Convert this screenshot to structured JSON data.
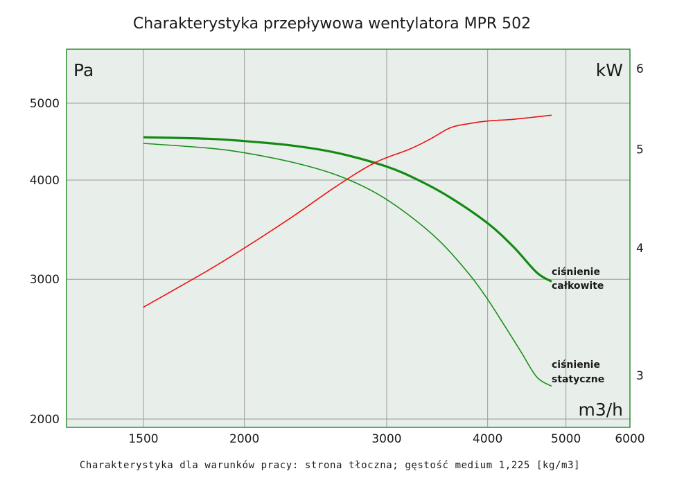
{
  "chart_data": {
    "type": "line",
    "title": "Charakterystyka przepływowa wentylatora MPR 502",
    "footer": "Charakterystyka dla warunków pracy: strona tłoczna; gęstość medium 1,225 [kg/m3]",
    "x_unit": "m3/h",
    "y_left_unit": "Pa",
    "y_right_unit": "kW",
    "x_scale": "log",
    "y_left_scale": "log",
    "y_right_scale": "log",
    "xlim": [
      1200,
      6000
    ],
    "ylim_left": [
      1950,
      6000
    ],
    "ylim_right": [
      2.6,
      6.2
    ],
    "x_ticks": [
      "1500",
      "2000",
      "3000",
      "4000",
      "5000",
      "6000"
    ],
    "y_left_ticks": [
      "2000",
      "3000",
      "4000",
      "5000"
    ],
    "y_right_ticks": [
      "3",
      "4",
      "5",
      "6"
    ],
    "grid": true,
    "colors": {
      "plot_bg": "#e8efea",
      "frame": "#2e8b2e",
      "grid": "#9a9a9a",
      "total_pressure": "#138a13",
      "static_pressure": "#1a8f1a",
      "power": "#ee1111"
    },
    "series": [
      {
        "name": "ciśnienie całkowite",
        "axis": "left",
        "label_lines": [
          "ciśnienie",
          "całkowite"
        ],
        "x": [
          1500,
          1800,
          2000,
          2300,
          2600,
          3000,
          3300,
          3600,
          4000,
          4300,
          4600,
          4800
        ],
        "y": [
          4530,
          4510,
          4480,
          4420,
          4330,
          4160,
          3990,
          3800,
          3530,
          3300,
          3060,
          2980
        ]
      },
      {
        "name": "ciśnienie statyczne",
        "axis": "left",
        "label_lines": [
          "ciśnienie",
          "statyczne"
        ],
        "x": [
          1500,
          1800,
          2000,
          2300,
          2600,
          2900,
          3200,
          3500,
          3800,
          4000,
          4200,
          4400,
          4600,
          4800
        ],
        "y": [
          4450,
          4390,
          4330,
          4210,
          4060,
          3860,
          3610,
          3340,
          3040,
          2830,
          2620,
          2430,
          2260,
          2200
        ]
      },
      {
        "name": "",
        "axis": "right",
        "x": [
          1500,
          1800,
          2000,
          2300,
          2600,
          2900,
          3200,
          3400,
          3600,
          3800,
          4000,
          4300,
          4600,
          4800
        ],
        "y": [
          3.5,
          3.8,
          4.0,
          4.3,
          4.6,
          4.85,
          5.0,
          5.12,
          5.25,
          5.3,
          5.33,
          5.35,
          5.38,
          5.4
        ]
      }
    ]
  }
}
